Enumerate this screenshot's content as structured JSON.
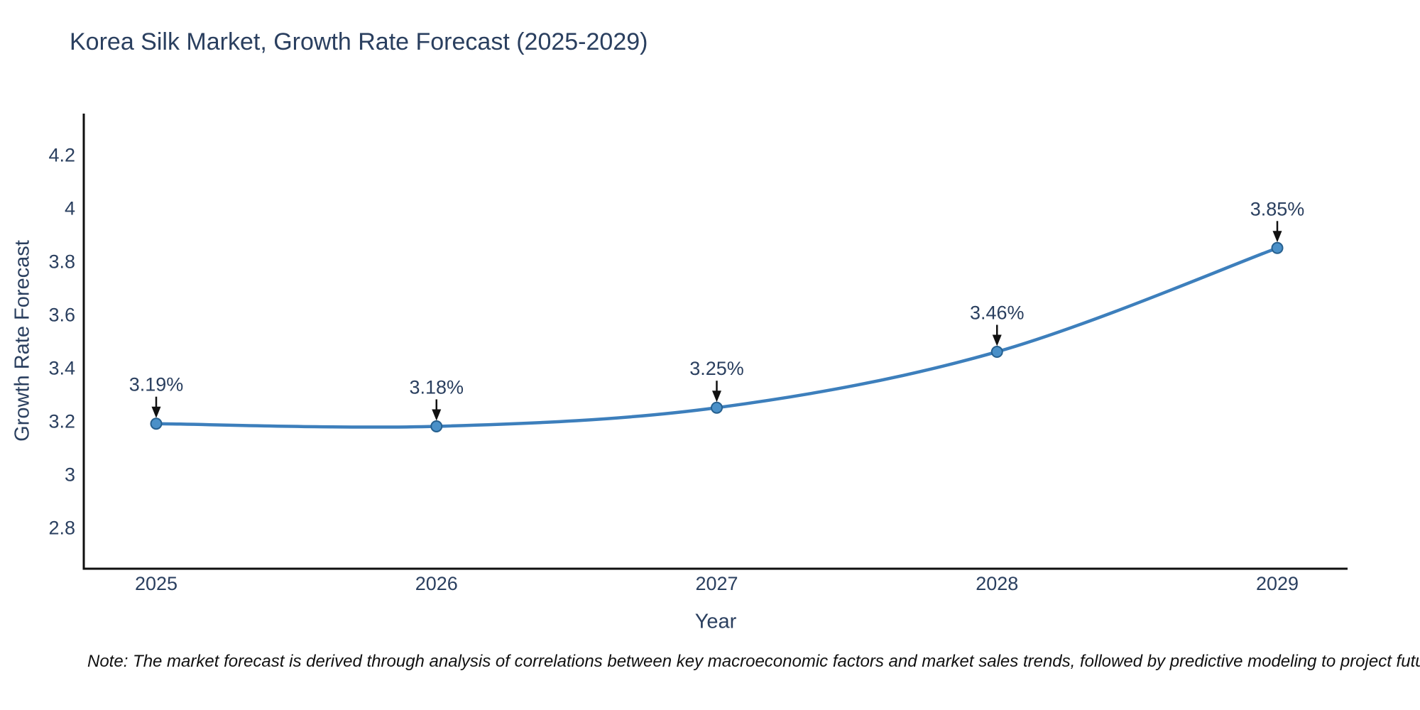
{
  "title": "Korea Silk Market, Growth Rate Forecast (2025-2029)",
  "footnote": "Note: The market forecast is derived through analysis of correlations between key macroeconomic factors and market sales trends, followed by predictive modeling to project future sales",
  "chart_data": {
    "type": "line",
    "title": "Korea Silk Market, Growth Rate Forecast (2025-2029)",
    "xlabel": "Year",
    "ylabel": "Growth Rate Forecast",
    "x": [
      "2025",
      "2026",
      "2027",
      "2028",
      "2029"
    ],
    "series": [
      {
        "name": "Growth Rate Forecast",
        "values": [
          3.19,
          3.18,
          3.25,
          3.46,
          3.85
        ]
      }
    ],
    "point_labels": [
      "3.19%",
      "3.18%",
      "3.25%",
      "3.46%",
      "3.85%"
    ],
    "y_ticks": [
      "2.8",
      "3",
      "3.2",
      "3.4",
      "3.6",
      "3.8",
      "4",
      "4.2"
    ],
    "y_tick_values": [
      2.8,
      3.0,
      3.2,
      3.4,
      3.6,
      3.8,
      4.0,
      4.2
    ],
    "ylim": [
      2.645,
      4.355
    ],
    "grid": false,
    "legend_position": "none",
    "line_shape": "spline",
    "annotation_arrows": true,
    "colors": {
      "line": "#3d7fbc",
      "marker_fill": "#4a90c8",
      "marker_edge": "#26608f",
      "axis_line": "#0f0f0f",
      "text": "#2a3f5f",
      "annotation_text": "#2a3f5f",
      "annotation_arrow": "#111111",
      "note_text": "#111111",
      "background": "#ffffff"
    }
  }
}
